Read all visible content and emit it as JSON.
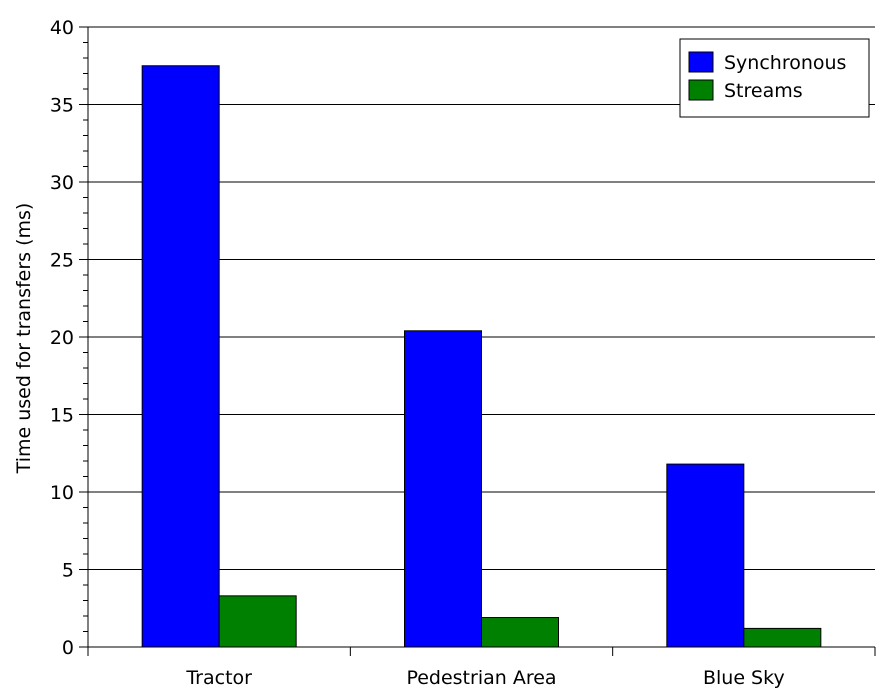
{
  "chart_data": {
    "type": "bar",
    "title": "",
    "xlabel": "",
    "ylabel": "Time used for transfers (ms)",
    "categories": [
      "Tractor",
      "Pedestrian Area",
      "Blue Sky"
    ],
    "series": [
      {
        "name": "Synchronous",
        "values": [
          37.5,
          20.4,
          11.8
        ],
        "color": "#0000ff"
      },
      {
        "name": "Streams",
        "values": [
          3.3,
          1.9,
          1.2
        ],
        "color": "#008000"
      }
    ],
    "ylim": [
      0,
      40
    ],
    "yticks": [
      "0",
      "5",
      "10",
      "15",
      "20",
      "25",
      "30",
      "35",
      "40"
    ],
    "grid": true,
    "legend_position": "top-right"
  }
}
